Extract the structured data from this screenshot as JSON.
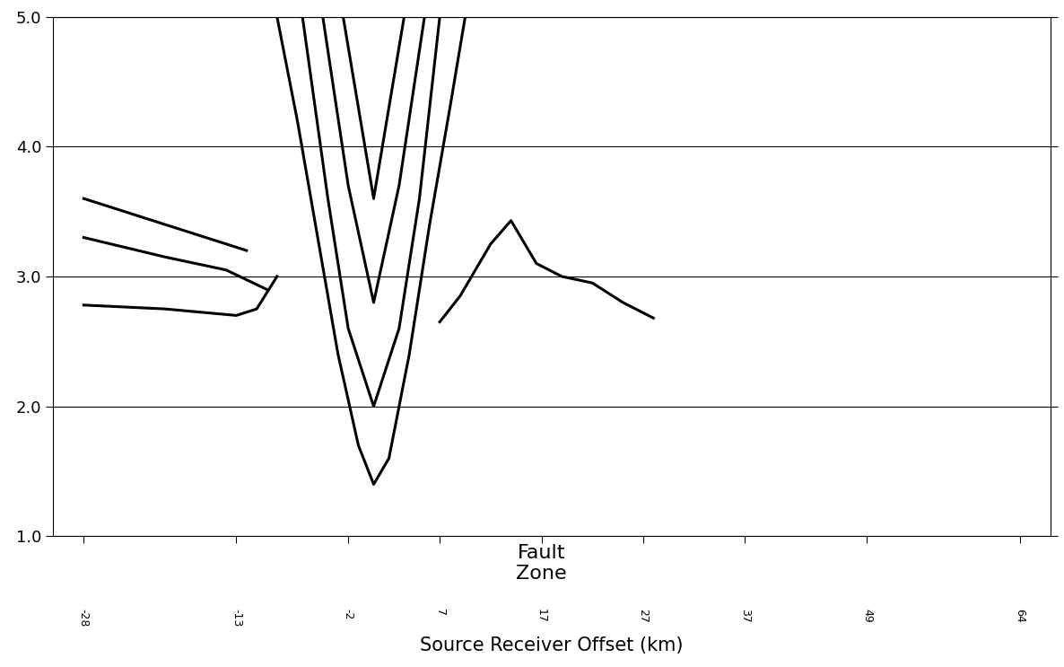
{
  "chart_data": {
    "type": "line",
    "x_label": "Source Receiver Offset (km)",
    "annotations": [
      {
        "text": "Fault\nZone",
        "x": 17
      }
    ],
    "xlim": [
      -31,
      67
    ],
    "xticks": [
      -28,
      -13,
      -2,
      7,
      17,
      27,
      37,
      49,
      64
    ],
    "ylim": [
      1.0,
      5.0
    ],
    "yticks": [
      1.0,
      2.0,
      3.0,
      4.0,
      5.0
    ],
    "grid": true,
    "color": "#000000",
    "series": [
      {
        "x": [
          -9,
          -7,
          -5,
          -3,
          -1,
          0.5,
          2,
          4,
          6,
          8,
          9.5
        ],
        "values": [
          5.0,
          4.2,
          3.3,
          2.4,
          1.7,
          1.4,
          1.6,
          2.4,
          3.4,
          4.3,
          5.0
        ]
      },
      {
        "x": [
          -6.5,
          -4,
          -2,
          0.5,
          3,
          5,
          7
        ],
        "values": [
          5.0,
          3.6,
          2.6,
          2.0,
          2.6,
          3.6,
          5.0
        ]
      },
      {
        "x": [
          -4.5,
          -2,
          0.5,
          3,
          5.5
        ],
        "values": [
          5.0,
          3.7,
          2.8,
          3.7,
          5.0
        ]
      },
      {
        "x": [
          -2.5,
          0.5,
          3.5
        ],
        "values": [
          5.0,
          3.6,
          5.0
        ]
      },
      {
        "x": [
          -28,
          -20,
          -13,
          -11,
          -9
        ],
        "values": [
          2.78,
          2.75,
          2.7,
          2.75,
          3.0
        ]
      },
      {
        "x": [
          -28,
          -20,
          -14,
          -10
        ],
        "values": [
          3.3,
          3.15,
          3.05,
          2.9
        ]
      },
      {
        "x": [
          -28,
          -20,
          -12
        ],
        "values": [
          3.6,
          3.4,
          3.2
        ]
      },
      {
        "x": [
          7,
          9,
          12,
          14,
          16.5,
          19,
          22,
          25,
          28
        ],
        "values": [
          2.65,
          2.85,
          3.25,
          3.43,
          3.1,
          3.0,
          2.95,
          2.8,
          2.68
        ]
      }
    ]
  }
}
